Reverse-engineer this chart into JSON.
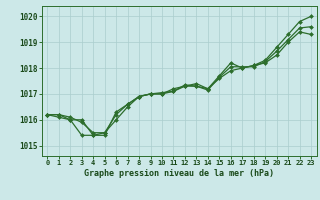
{
  "title": "Graphe pression niveau de la mer (hPa)",
  "xlabel_hours": [
    0,
    1,
    2,
    3,
    4,
    5,
    6,
    7,
    8,
    9,
    10,
    11,
    12,
    13,
    14,
    15,
    16,
    17,
    18,
    19,
    20,
    21,
    22,
    23
  ],
  "ylim": [
    1014.6,
    1020.4
  ],
  "yticks": [
    1015,
    1016,
    1017,
    1018,
    1019,
    1020
  ],
  "bg_color": "#cce8e8",
  "grid_color": "#aacece",
  "line_color": "#2d6e2d",
  "marker_color": "#2d6e2d",
  "title_color": "#1a4a1a",
  "series": [
    [
      1016.2,
      1016.2,
      1016.1,
      1015.9,
      1015.5,
      1015.5,
      1016.2,
      1016.6,
      1016.9,
      1017.0,
      1017.0,
      1017.1,
      1017.3,
      1017.3,
      1017.2,
      1017.6,
      1017.9,
      1018.0,
      1018.1,
      1018.3,
      1018.8,
      1019.3,
      1019.8,
      1020.0
    ],
    [
      1016.2,
      1016.1,
      1016.0,
      1015.4,
      1015.4,
      1015.5,
      1016.0,
      1016.5,
      1016.9,
      1017.0,
      1017.0,
      1017.2,
      1017.3,
      1017.4,
      1017.2,
      1017.7,
      1018.2,
      1018.0,
      1018.1,
      1018.2,
      1018.5,
      1019.0,
      1019.4,
      1019.3
    ],
    [
      1016.2,
      1016.2,
      1016.0,
      1016.0,
      1015.4,
      1015.4,
      1016.3,
      1016.6,
      1016.9,
      1017.0,
      1017.05,
      1017.1,
      1017.35,
      1017.3,
      1017.15,
      1017.65,
      1018.05,
      1018.05,
      1018.05,
      1018.25,
      1018.65,
      1019.1,
      1019.55,
      1019.6
    ]
  ],
  "tick_fontsize": 5.0,
  "title_fontsize": 6.0,
  "linewidth": 0.9,
  "markersize": 2.0
}
